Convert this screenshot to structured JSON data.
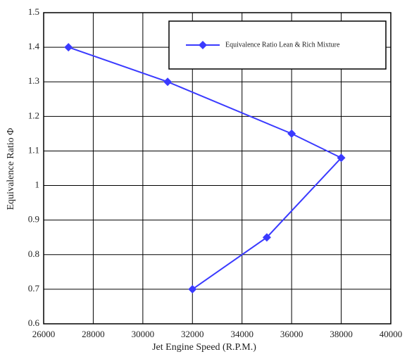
{
  "chart_data": {
    "type": "line",
    "x_label": "Jet Engine Speed  (R.P.M.)",
    "y_label": "Equivalence Ratio Φ",
    "x": [
      27000,
      31000,
      36000,
      38000,
      35000,
      32000
    ],
    "series": [
      {
        "name": "Equivalence Ratio Lean & Rich Mixture",
        "color": "#3a3aff",
        "values": [
          1.4,
          1.3,
          1.15,
          1.08,
          0.85,
          0.7
        ]
      }
    ],
    "xlim": [
      26000,
      40000
    ],
    "xticks": [
      26000,
      28000,
      30000,
      32000,
      34000,
      36000,
      38000,
      40000
    ],
    "ylim": [
      0.6,
      1.5
    ],
    "yticks": [
      0.6,
      0.7,
      0.8,
      0.9,
      1,
      1.1,
      1.2,
      1.3,
      1.4,
      1.5
    ],
    "grid": true,
    "legend": "upper right"
  }
}
